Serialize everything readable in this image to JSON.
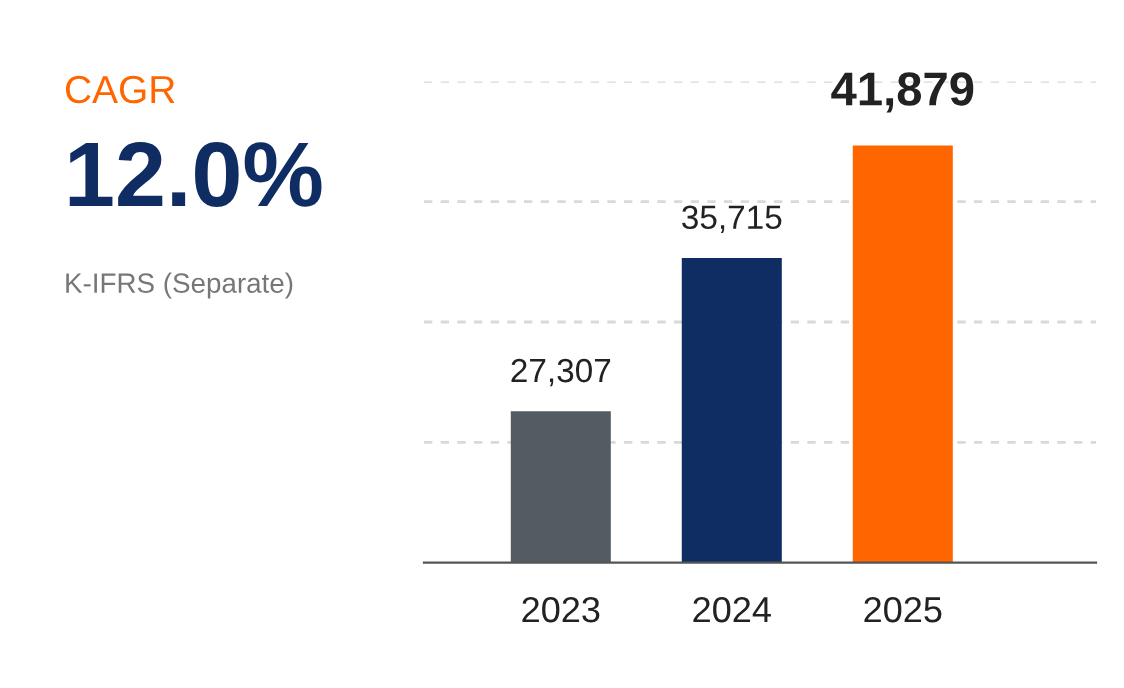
{
  "chart_data": {
    "type": "bar",
    "categories": [
      "2023",
      "2024",
      "2025"
    ],
    "values": [
      27307,
      35715,
      41879
    ],
    "colors": [
      "#535c63",
      "#0f2d63",
      "#ff6600"
    ],
    "value_labels": [
      "27,307",
      "35,715",
      "41,879"
    ],
    "ylim": [
      19000,
      45400
    ],
    "yticks": [
      {
        "value": 25600,
        "label": null
      },
      {
        "value": 32200,
        "label": null
      },
      {
        "value": 38800,
        "label": null
      },
      {
        "value": 45400,
        "label": null
      }
    ],
    "grid": "y",
    "tick_labels": "x",
    "annotations": [
      "CAGR",
      "12.0%",
      "K-IFRS (Separate)"
    ]
  }
}
